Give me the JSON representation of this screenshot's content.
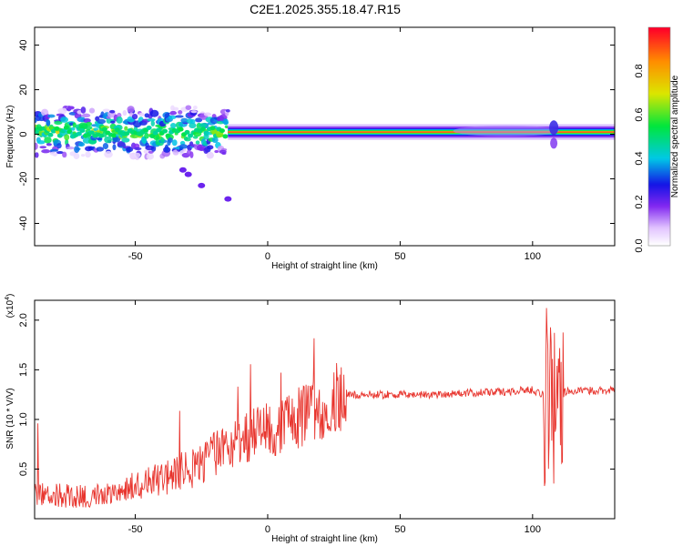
{
  "title": "C2E1.2025.355.18.47.R15",
  "chart_data": [
    {
      "type": "heatmap",
      "xlabel": "Height of straight line (km)",
      "ylabel": "Frequency (Hz)",
      "xlim": [
        -88,
        131
      ],
      "ylim": [
        -50,
        48
      ],
      "xticks": [
        -50,
        0,
        50,
        100
      ],
      "yticks": [
        -40,
        -20,
        0,
        20,
        40
      ],
      "colorbar": {
        "label": "Normalized spectral amplitude",
        "range": [
          0,
          1
        ],
        "ticks": [
          0.0,
          0.2,
          0.4,
          0.6,
          0.8
        ]
      },
      "ridge": {
        "description_points": [
          {
            "x": -88,
            "freq": 1
          },
          {
            "x": -15,
            "freq": 1
          },
          {
            "x": 0,
            "freq": 0
          },
          {
            "x": 25,
            "freq": 1
          },
          {
            "x": 131,
            "freq": 1
          }
        ]
      }
    },
    {
      "type": "line",
      "xlabel": "Height of straight line (km)",
      "ylabel": "SNR (10 * V/V)",
      "scale_note": "(x10^4)",
      "scale_base": "(x10",
      "scale_exp": "4",
      "scale_close": ")",
      "xlim": [
        -88,
        131
      ],
      "ylim": [
        0,
        2.2
      ],
      "xticks": [
        -50,
        0,
        50,
        100
      ],
      "yticks": [
        0.5,
        1.0,
        1.5,
        2.0
      ],
      "series": [
        {
          "color": "#e8352e",
          "envelope": [
            {
              "x": -88,
              "y": 0.25
            },
            {
              "x": -70,
              "y": 0.22
            },
            {
              "x": -55,
              "y": 0.3
            },
            {
              "x": -40,
              "y": 0.4
            },
            {
              "x": -25,
              "y": 0.55
            },
            {
              "x": -15,
              "y": 0.75
            },
            {
              "x": -5,
              "y": 0.85
            },
            {
              "x": 5,
              "y": 0.95
            },
            {
              "x": 15,
              "y": 1.05
            },
            {
              "x": 25,
              "y": 1.2
            },
            {
              "x": 30,
              "y": 1.25
            },
            {
              "x": 60,
              "y": 1.25
            },
            {
              "x": 90,
              "y": 1.28
            },
            {
              "x": 100,
              "y": 1.3
            },
            {
              "x": 104,
              "y": 1.25
            },
            {
              "x": 108,
              "y": 1.2
            },
            {
              "x": 112,
              "y": 1.28
            },
            {
              "x": 131,
              "y": 1.3
            }
          ]
        }
      ]
    }
  ]
}
